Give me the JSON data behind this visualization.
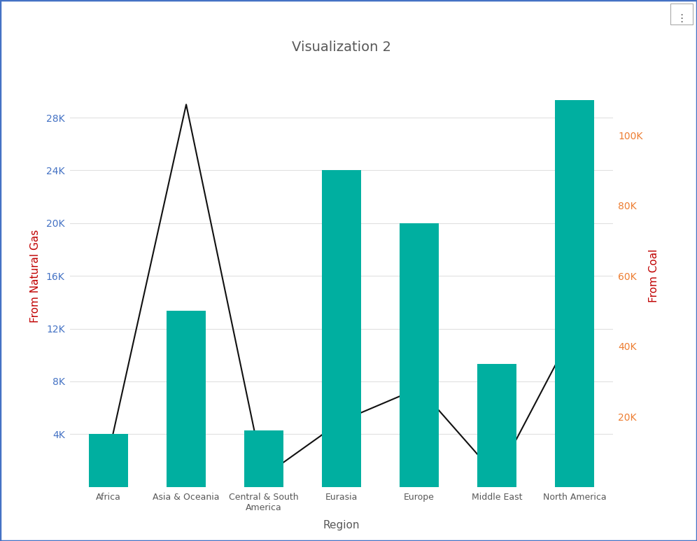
{
  "title": "Visualization 2",
  "categories": [
    "Africa",
    "Asia & Oceania",
    "Central & South\nAmerica",
    "Eurasia",
    "Europe",
    "Middle East",
    "North America"
  ],
  "bar_values": [
    15000,
    50000,
    16000,
    90000,
    75000,
    35000,
    110000
  ],
  "line_values": [
    2500,
    29000,
    800,
    5000,
    7500,
    800,
    12000
  ],
  "bar_color": "#00AFA0",
  "line_color": "#111111",
  "left_ylabel": "From Natural Gas",
  "right_ylabel": "From Coal",
  "xlabel": "Region",
  "left_ylim": [
    0,
    32000
  ],
  "right_ylim": [
    0,
    120000
  ],
  "left_yticks": [
    4000,
    8000,
    12000,
    16000,
    20000,
    24000,
    28000
  ],
  "right_yticks": [
    20000,
    40000,
    60000,
    80000,
    100000
  ],
  "left_tick_color": "#4472C4",
  "right_tick_color": "#ED7D31",
  "ylabel_color": "#C00000",
  "title_color": "#595959",
  "xlabel_color": "#595959",
  "xtick_color": "#595959",
  "background_color": "#FFFFFF",
  "grid_color": "#E0E0E0",
  "border_color": "#4472C4",
  "title_fontsize": 14,
  "axis_label_fontsize": 11,
  "tick_fontsize": 10,
  "xtick_fontsize": 9,
  "bar_width": 0.5,
  "line_width": 1.5
}
